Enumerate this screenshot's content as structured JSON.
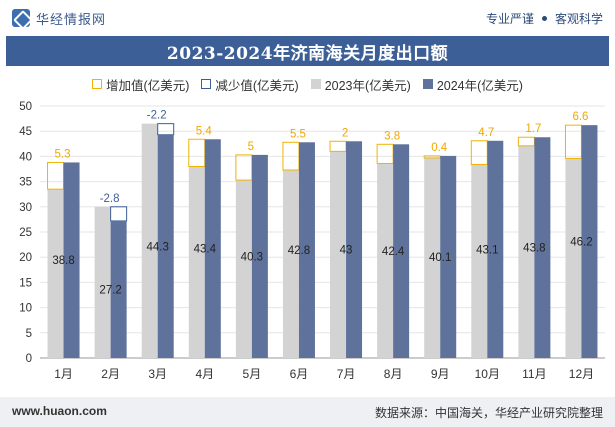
{
  "header": {
    "brand_name": "华经情报网",
    "tags": [
      "专业严谨",
      "客观科学"
    ]
  },
  "chart_data": {
    "type": "bar",
    "title": "2023-2024年济南海关月度出口额",
    "legend": {
      "increase": "增加值(亿美元)",
      "decrease": "减少值(亿美元)",
      "s2023": "2023年(亿美元)",
      "s2024": "2024年(亿美元)"
    },
    "categories": [
      "1月",
      "2月",
      "3月",
      "4月",
      "5月",
      "6月",
      "7月",
      "8月",
      "9月",
      "10月",
      "11月",
      "12月"
    ],
    "series": [
      {
        "name": "2023年(亿美元)",
        "values": [
          33.5,
          30.0,
          46.5,
          38.0,
          35.3,
          37.3,
          41.0,
          38.6,
          39.7,
          38.4,
          42.1,
          39.6
        ]
      },
      {
        "name": "2024年(亿美元)",
        "values": [
          38.8,
          27.2,
          44.3,
          43.4,
          40.3,
          42.8,
          43,
          42.4,
          40.1,
          43.1,
          43.8,
          46.2
        ]
      }
    ],
    "change_labels": [
      "5.3",
      "-2.8",
      "-2.2",
      "5.4",
      "5",
      "5.5",
      "2",
      "3.8",
      "0.4",
      "4.7",
      "1.7",
      "6.6"
    ],
    "value_labels": [
      "38.8",
      "27.2",
      "44.3",
      "43.4",
      "40.3",
      "42.8",
      "43",
      "42.4",
      "40.1",
      "43.1",
      "43.8",
      "46.2"
    ],
    "ylim": [
      0,
      50
    ],
    "yticks": [
      0,
      5,
      10,
      15,
      20,
      25,
      30,
      35,
      40,
      45,
      50
    ],
    "colors": {
      "s2023": "#d3d3d3",
      "s2024": "#5e729c",
      "increase_border": "#f0b400",
      "decrease_border": "#3d5f98",
      "increase_label": "#f0a800",
      "decrease_label": "#3d5f98"
    }
  },
  "footer": {
    "website": "www.huaon.com",
    "source": "数据来源：中国海关，华经产业研究院整理"
  }
}
